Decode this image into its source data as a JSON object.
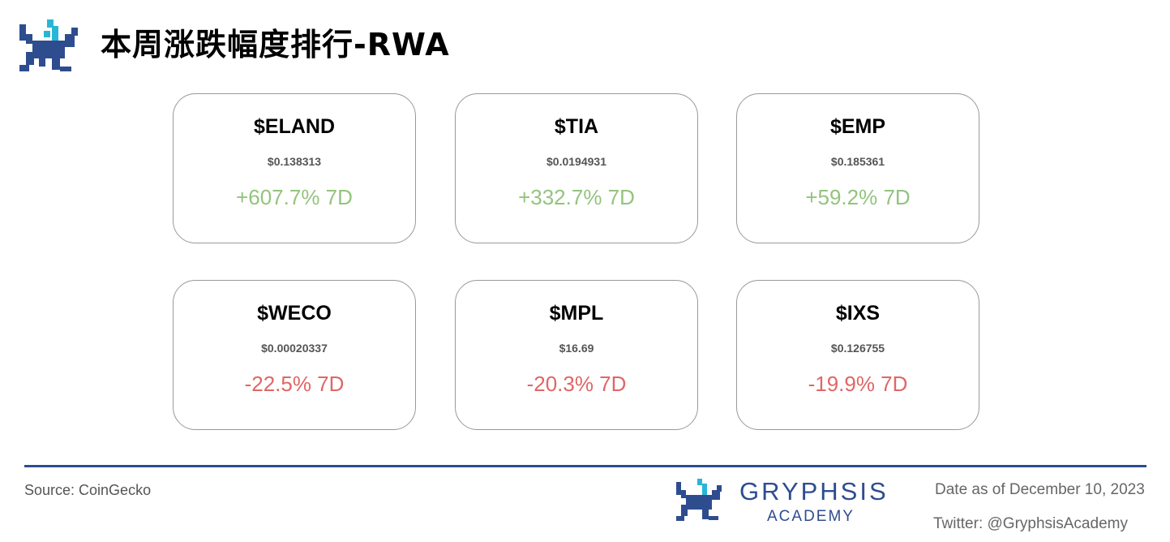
{
  "header": {
    "title": "本周涨跌幅度排行-RWA"
  },
  "cards": [
    {
      "symbol": "$ELAND",
      "price": "$0.138313",
      "change": "+607.7% 7D",
      "color": "#93c47d"
    },
    {
      "symbol": "$TIA",
      "price": "$0.0194931",
      "change": "+332.7% 7D",
      "color": "#93c47d"
    },
    {
      "symbol": "$EMP",
      "price": "$0.185361",
      "change": "+59.2% 7D",
      "color": "#93c47d"
    },
    {
      "symbol": "$WECO",
      "price": "$0.00020337",
      "change": "-22.5% 7D",
      "color": "#e06666"
    },
    {
      "symbol": "$MPL",
      "price": "$16.69",
      "change": "-20.3% 7D",
      "color": "#e06666"
    },
    {
      "symbol": "$IXS",
      "price": "$0.126755",
      "change": "-19.9% 7D",
      "color": "#e06666"
    }
  ],
  "footer": {
    "source": "Source: CoinGecko",
    "brand": "GRYPHSIS",
    "brand_sub": "ACADEMY",
    "date": "Date as of December 10, 2023",
    "twitter": "Twitter: @GryphsisAcademy"
  }
}
